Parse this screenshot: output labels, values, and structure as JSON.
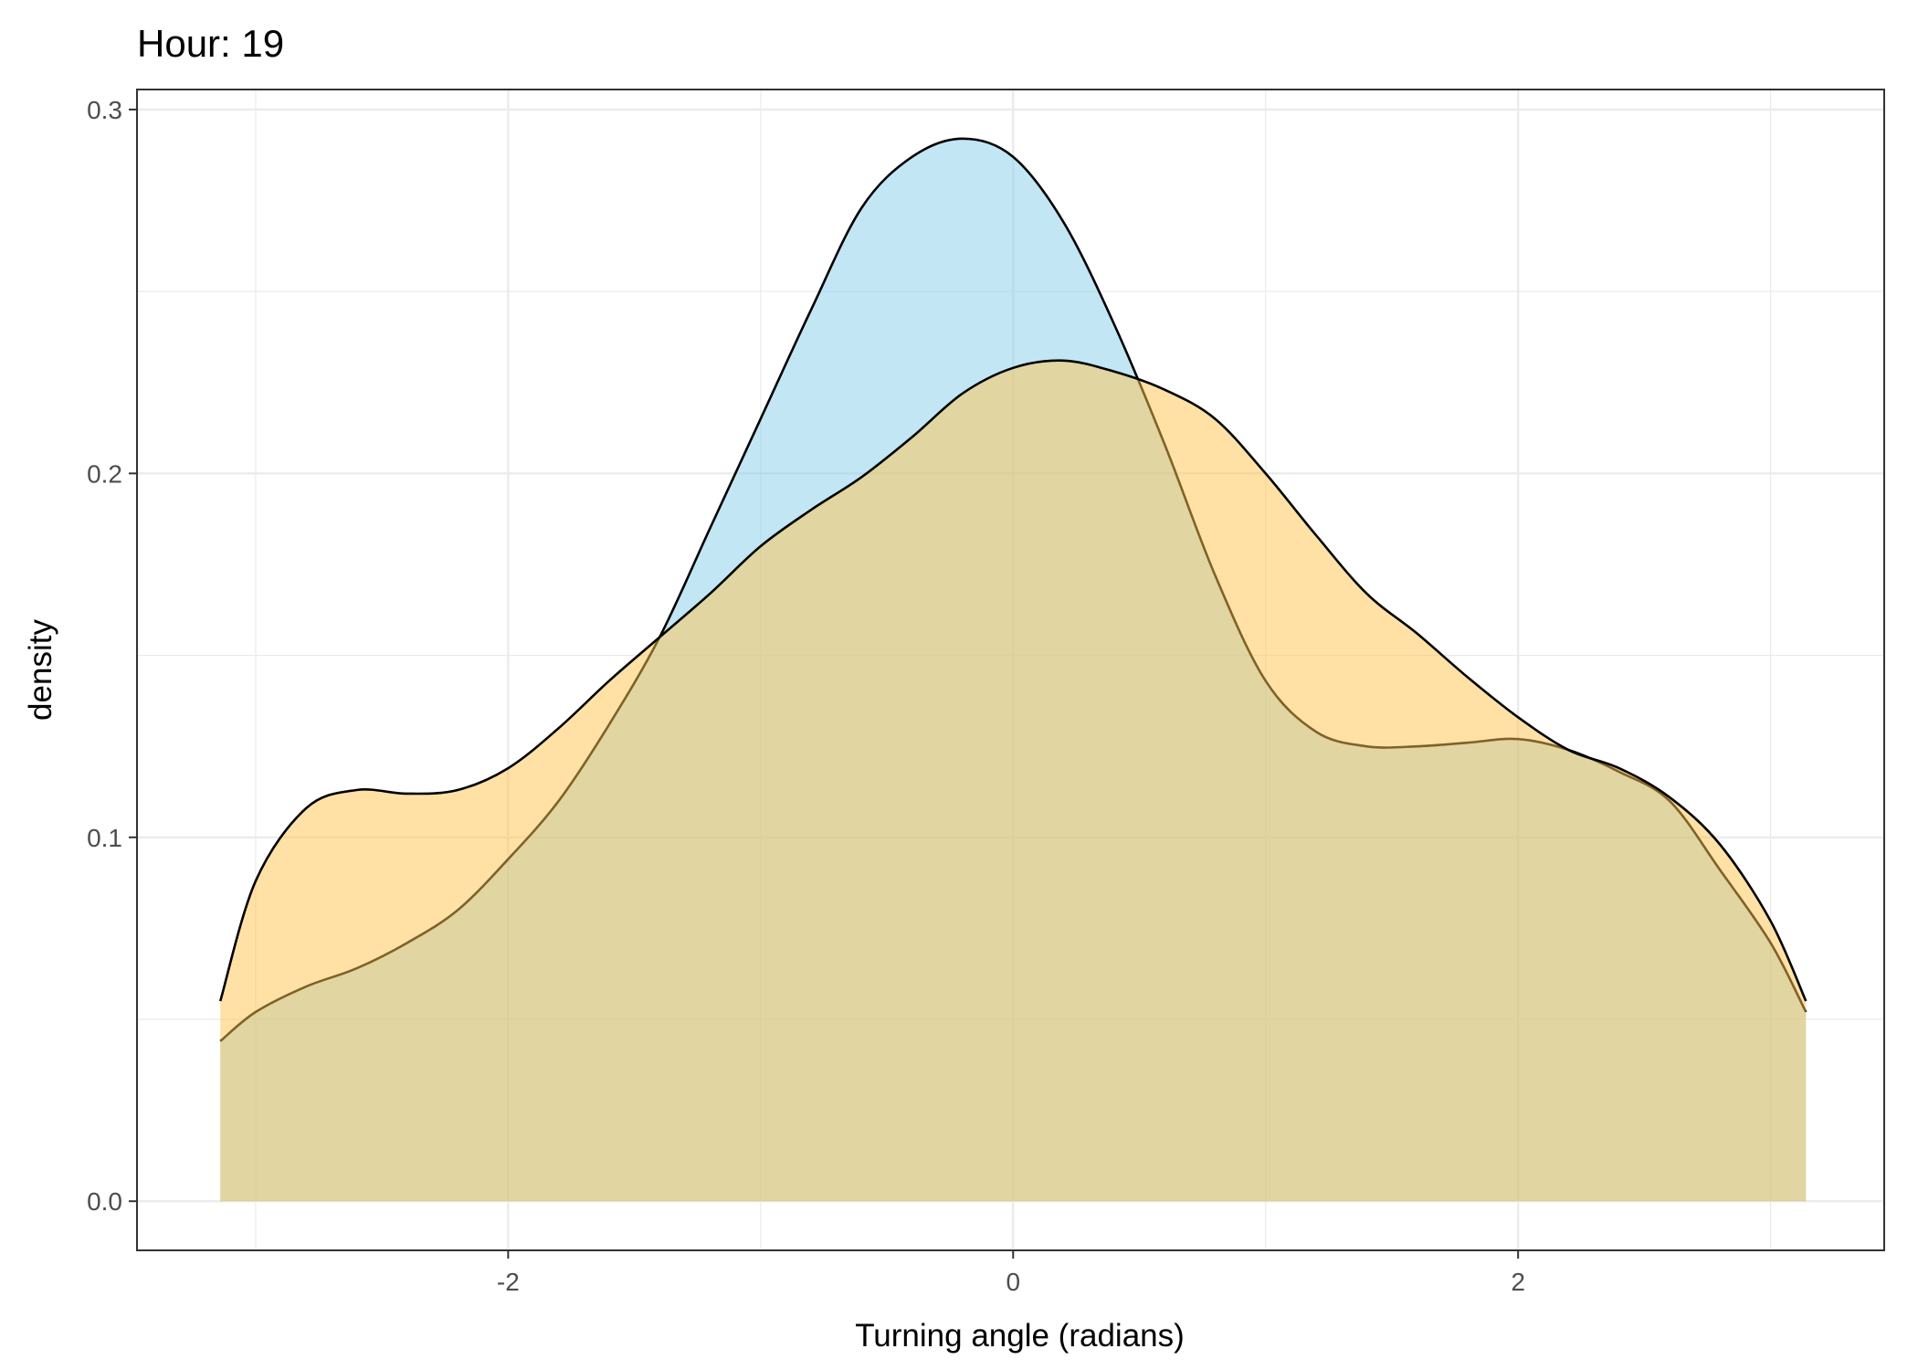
{
  "chart_data": {
    "type": "area",
    "title": "Hour: 19",
    "xlabel": "Turning angle (radians)",
    "ylabel": "density",
    "xlim": [
      -3.47,
      3.45
    ],
    "ylim": [
      -0.0135,
      0.3055
    ],
    "x_major_ticks": [
      -2,
      0,
      2
    ],
    "x_minor_ticks": [
      -3,
      -1,
      1,
      3
    ],
    "y_major_ticks": [
      0.0,
      0.1,
      0.2,
      0.3
    ],
    "y_minor_ticks": [
      0.05,
      0.15,
      0.25
    ],
    "x_tick_labels": [
      "-2",
      "0",
      "2"
    ],
    "y_tick_labels": [
      "0.0",
      "0.1",
      "0.2",
      "0.3"
    ],
    "grid": true,
    "legend": "none",
    "series": [
      {
        "fill": "#87CEEB",
        "x": [
          -3.14,
          -3.0,
          -2.8,
          -2.6,
          -2.4,
          -2.2,
          -2.0,
          -1.8,
          -1.6,
          -1.4,
          -1.2,
          -1.0,
          -0.8,
          -0.6,
          -0.4,
          -0.2,
          0.0,
          0.2,
          0.4,
          0.6,
          0.8,
          1.0,
          1.2,
          1.4,
          1.6,
          1.8,
          2.0,
          2.2,
          2.4,
          2.6,
          2.8,
          3.0,
          3.14
        ],
        "y": [
          0.044,
          0.052,
          0.059,
          0.064,
          0.071,
          0.08,
          0.094,
          0.11,
          0.131,
          0.155,
          0.185,
          0.215,
          0.245,
          0.273,
          0.287,
          0.292,
          0.287,
          0.269,
          0.241,
          0.208,
          0.172,
          0.143,
          0.129,
          0.125,
          0.125,
          0.126,
          0.127,
          0.124,
          0.118,
          0.11,
          0.091,
          0.071,
          0.052
        ]
      },
      {
        "fill": "#FFC34D",
        "x": [
          -3.14,
          -3.0,
          -2.8,
          -2.6,
          -2.4,
          -2.2,
          -2.0,
          -1.8,
          -1.6,
          -1.4,
          -1.2,
          -1.0,
          -0.8,
          -0.6,
          -0.4,
          -0.2,
          0.0,
          0.2,
          0.4,
          0.6,
          0.8,
          1.0,
          1.2,
          1.4,
          1.6,
          1.8,
          2.0,
          2.2,
          2.4,
          2.6,
          2.8,
          3.0,
          3.14
        ],
        "y": [
          0.055,
          0.088,
          0.108,
          0.113,
          0.112,
          0.113,
          0.119,
          0.13,
          0.143,
          0.155,
          0.167,
          0.18,
          0.19,
          0.199,
          0.21,
          0.222,
          0.229,
          0.231,
          0.228,
          0.223,
          0.215,
          0.2,
          0.183,
          0.167,
          0.156,
          0.144,
          0.133,
          0.124,
          0.119,
          0.111,
          0.098,
          0.077,
          0.055
        ]
      }
    ]
  }
}
